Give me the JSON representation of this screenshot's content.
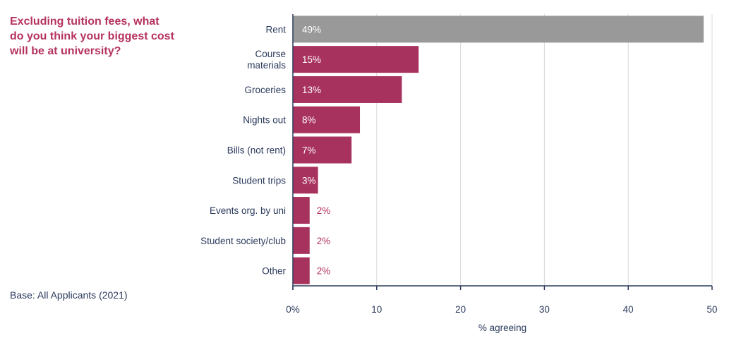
{
  "question": "Excluding tuition fees, what\ndo you think your biggest cost\nwill be at university?",
  "base_note": "Base: All Applicants (2021)",
  "colors": {
    "accent": "#a8325e",
    "highlight": "#999999",
    "text": "#2b3a5c",
    "grid": "#d9d9d9"
  },
  "chart_data": {
    "type": "bar",
    "orientation": "horizontal",
    "title": "",
    "xlabel": "% agreeing",
    "ylabel": "",
    "xlim": [
      0,
      50
    ],
    "xticks": [
      "0%",
      "10",
      "20",
      "30",
      "40",
      "50"
    ],
    "grid": true,
    "categories": [
      [
        "Rent"
      ],
      [
        "Course",
        "materials"
      ],
      [
        "Groceries"
      ],
      [
        "Nights out"
      ],
      [
        "Bills (not rent)"
      ],
      [
        "Student trips"
      ],
      [
        "Events org. by uni"
      ],
      [
        "Student society/club"
      ],
      [
        "Other"
      ]
    ],
    "values": [
      49,
      15,
      13,
      8,
      7,
      3,
      2,
      2,
      2
    ],
    "data_labels": [
      "49%",
      "15%",
      "13%",
      "8%",
      "7%",
      "3%",
      "2%",
      "2%",
      "2%"
    ],
    "highlighted_category": "Rent"
  }
}
